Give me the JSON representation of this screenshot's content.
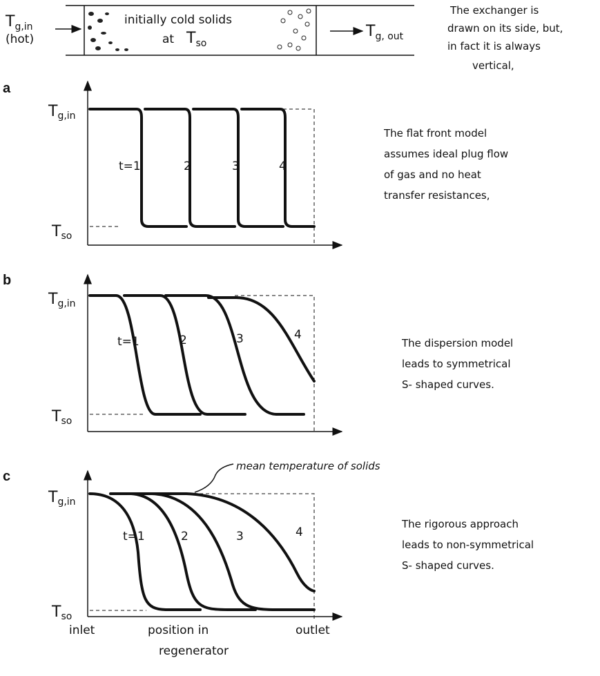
{
  "exchanger": {
    "inlet_label": {
      "main": "T",
      "sub": "g,in"
    },
    "inlet_note": "(hot)",
    "fill_label": "initially cold solids",
    "fill_label_prefix": "at",
    "fill_label_temp": {
      "main": "T",
      "sub": "so"
    },
    "outlet_label": {
      "main": "T",
      "sub": "g, out"
    },
    "note": [
      "The exchanger is",
      "drawn on its side, but,",
      "in fact it is always",
      "vertical,"
    ]
  },
  "panels": [
    {
      "letter": "a",
      "top_label": {
        "main": "T",
        "sub": "g,in"
      },
      "bottom_label": {
        "main": "T",
        "sub": "so"
      },
      "curve_labels": [
        "t=1",
        "2",
        "3",
        "4"
      ],
      "description": [
        "The flat front model",
        "assumes ideal plug flow",
        "of gas and no heat",
        "transfer resistances,"
      ]
    },
    {
      "letter": "b",
      "top_label": {
        "main": "T",
        "sub": "g,in"
      },
      "bottom_label": {
        "main": "T",
        "sub": "so"
      },
      "curve_labels": [
        "t=1",
        "2",
        "3",
        "4"
      ],
      "description": [
        "The dispersion model",
        "leads to symmetrical",
        "S- shaped curves."
      ]
    },
    {
      "letter": "c",
      "top_label": {
        "main": "T",
        "sub": "g,in"
      },
      "bottom_label": {
        "main": "T",
        "sub": "so"
      },
      "curve_labels": [
        "t=1",
        "2",
        "3",
        "4"
      ],
      "description": [
        "The rigorous approach",
        "leads to non-symmetrical",
        "S- shaped curves."
      ],
      "annotation": "mean temperature of solids"
    }
  ],
  "x_labels": {
    "inlet": "inlet",
    "position": [
      "position in",
      "regenerator"
    ],
    "outlet": "outlet"
  }
}
